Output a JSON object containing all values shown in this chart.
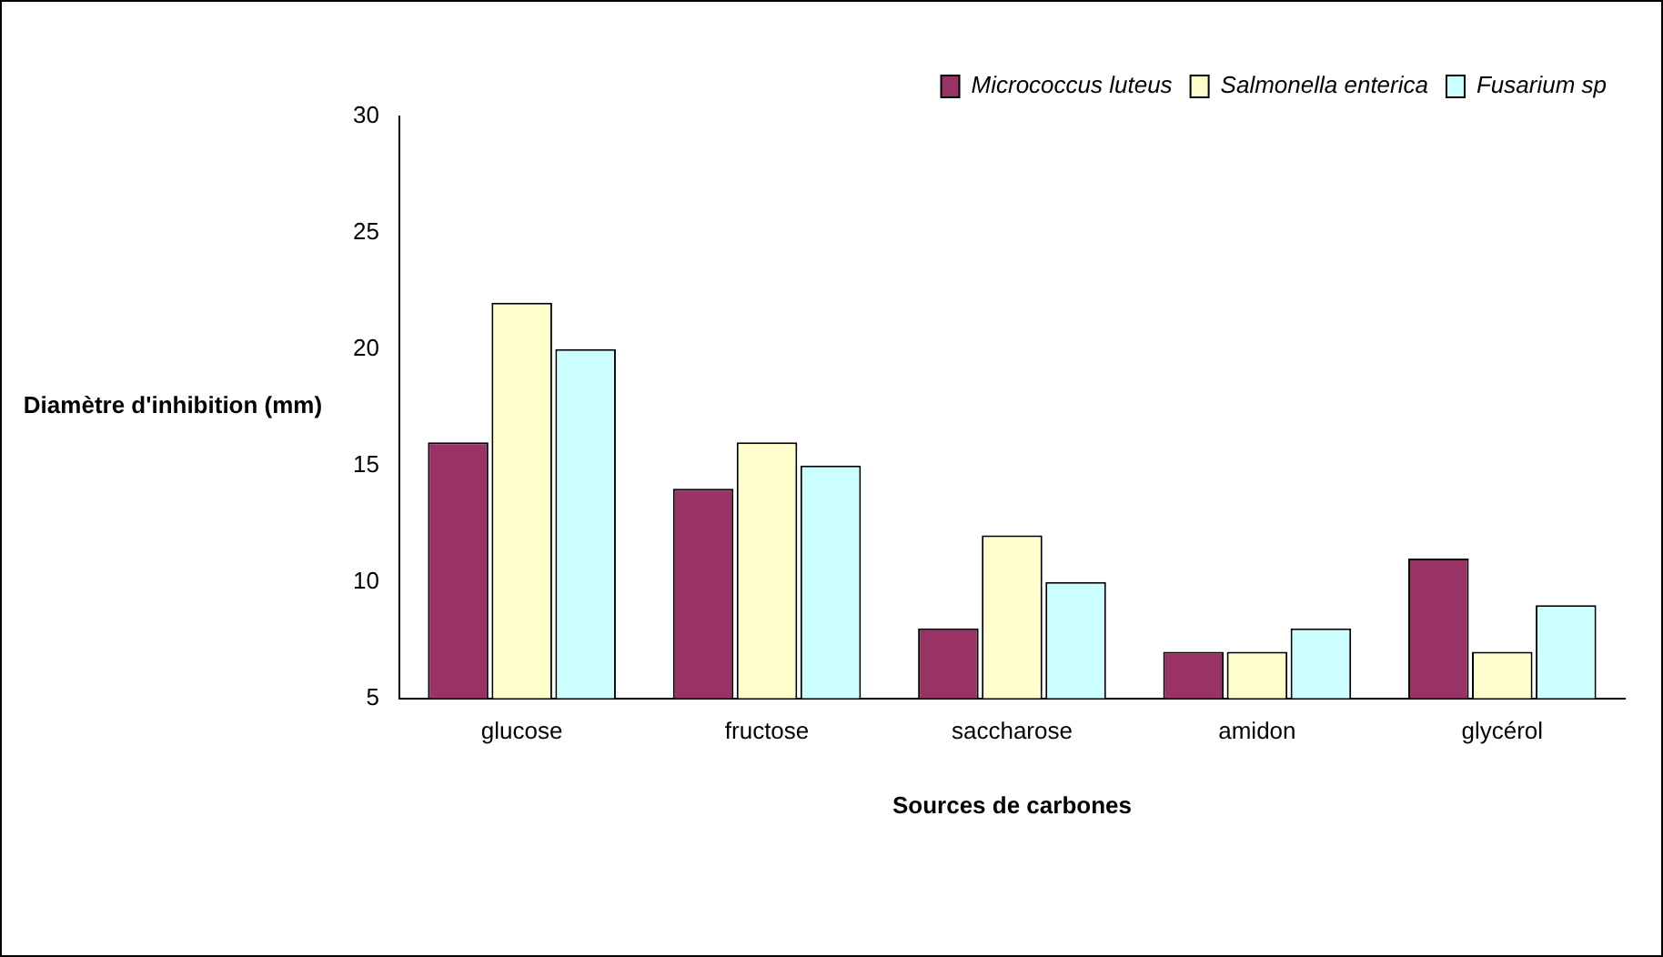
{
  "chart_data": {
    "type": "bar",
    "xlabel": "Sources de carbones",
    "ylabel": "Diamètre d'inhibition (mm)",
    "categories": [
      "glucose",
      "fructose",
      "saccharose",
      "amidon",
      "glycérol"
    ],
    "series": [
      {
        "name": "Micrococcus luteus",
        "color": "#993366",
        "values": [
          16,
          14,
          8,
          7,
          11
        ]
      },
      {
        "name": "Salmonella enterica",
        "color": "#ffffcc",
        "values": [
          22,
          16,
          12,
          7,
          7
        ]
      },
      {
        "name": "Fusarium sp",
        "color": "#ccffff",
        "values": [
          20,
          15,
          10,
          8,
          9
        ]
      }
    ],
    "ylim": [
      5,
      30
    ],
    "yticks": [
      5,
      10,
      15,
      20,
      25,
      30
    ],
    "grid": false,
    "legend": "top right"
  }
}
